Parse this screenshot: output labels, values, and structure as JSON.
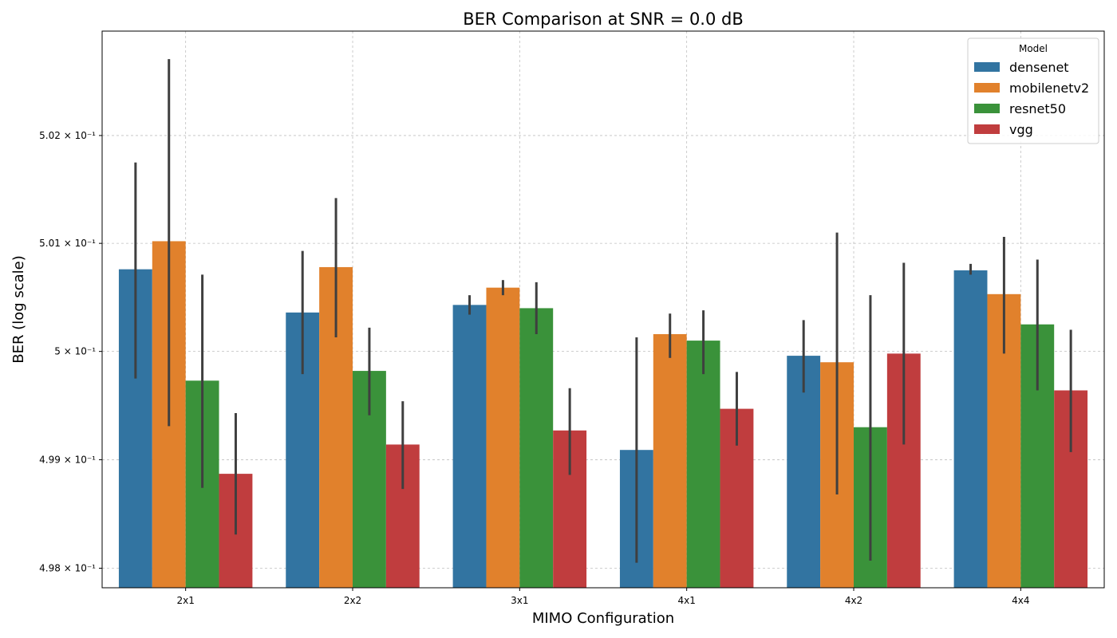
{
  "chart_data": {
    "type": "bar",
    "title": "BER Comparison at SNR = 0.0 dB",
    "xlabel": "MIMO Configuration",
    "ylabel": "BER (log scale)",
    "yscale": "log",
    "ylim": [
      0.49782,
      0.50297
    ],
    "yticks": [
      {
        "value": 0.498,
        "label": "4.98 × 10⁻¹"
      },
      {
        "value": 0.499,
        "label": "4.99 × 10⁻¹"
      },
      {
        "value": 0.5,
        "label": "5 × 10⁻¹"
      },
      {
        "value": 0.501,
        "label": "5.01 × 10⁻¹"
      },
      {
        "value": 0.502,
        "label": "5.02 × 10⁻¹"
      }
    ],
    "grid": true,
    "legend": {
      "title": "Model",
      "placement": "top-right"
    },
    "categories": [
      "2x1",
      "2x2",
      "3x1",
      "4x1",
      "4x2",
      "4x4"
    ],
    "series": [
      {
        "name": "densenet",
        "color": "#3274a1",
        "values": [
          0.50076,
          0.50036,
          0.50043,
          0.49909,
          0.49996,
          0.50075
        ],
        "err_low": [
          0.49975,
          0.49979,
          0.50034,
          0.49805,
          0.49962,
          0.50071
        ],
        "err_high": [
          0.50175,
          0.50093,
          0.50052,
          0.50013,
          0.50029,
          0.50081
        ]
      },
      {
        "name": "mobilenetv2",
        "color": "#e1812c",
        "values": [
          0.50102,
          0.50078,
          0.50059,
          0.50016,
          0.4999,
          0.50053
        ],
        "err_low": [
          0.49931,
          0.50013,
          0.50052,
          0.49994,
          0.49868,
          0.49998
        ],
        "err_high": [
          0.50271,
          0.50142,
          0.50066,
          0.50035,
          0.5011,
          0.50106
        ]
      },
      {
        "name": "resnet50",
        "color": "#3a923a",
        "values": [
          0.49973,
          0.49982,
          0.5004,
          0.5001,
          0.4993,
          0.50025
        ],
        "err_low": [
          0.49874,
          0.49941,
          0.50016,
          0.49979,
          0.49807,
          0.49964
        ],
        "err_high": [
          0.50071,
          0.50022,
          0.50064,
          0.50038,
          0.50052,
          0.50085
        ]
      },
      {
        "name": "vgg",
        "color": "#c03d3e",
        "values": [
          0.49887,
          0.49914,
          0.49927,
          0.49947,
          0.49998,
          0.49964
        ],
        "err_low": [
          0.49831,
          0.49873,
          0.49886,
          0.49913,
          0.49914,
          0.49907
        ],
        "err_high": [
          0.49943,
          0.49954,
          0.49966,
          0.49981,
          0.50082,
          0.5002
        ]
      }
    ]
  }
}
